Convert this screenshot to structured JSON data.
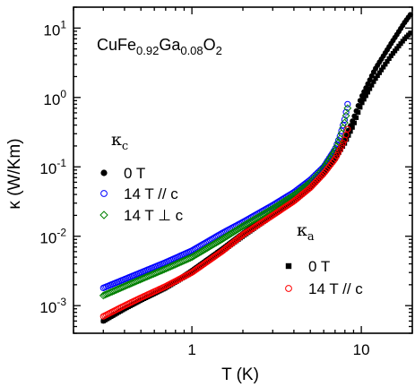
{
  "chart_data": {
    "type": "scatter",
    "title_parts": [
      "CuFe",
      "0.92",
      "Ga",
      "0.08",
      "O",
      "2"
    ],
    "xlabel": "T (K)",
    "ylabel": "κ (W/Km)",
    "xscale": "log",
    "yscale": "log",
    "xlim": [
      0.2,
      20
    ],
    "ylim": [
      0.0004,
      20
    ],
    "x_ticks": [
      {
        "value": 1,
        "label": "1"
      },
      {
        "value": 10,
        "label": "10"
      }
    ],
    "y_ticks": [
      {
        "value": 0.001,
        "base": "10",
        "exp": "-3"
      },
      {
        "value": 0.01,
        "base": "10",
        "exp": "-2"
      },
      {
        "value": 0.1,
        "base": "10",
        "exp": "-1"
      },
      {
        "value": 1,
        "base": "10",
        "exp": "0"
      },
      {
        "value": 10,
        "base": "10",
        "exp": "1"
      }
    ],
    "legend_groups": [
      {
        "symbol": "κ",
        "subscript": "c",
        "placement": "middle-left"
      },
      {
        "symbol": "κ",
        "subscript": "a",
        "placement": "bottom-right"
      }
    ],
    "series": [
      {
        "name": "0 T",
        "group": "c",
        "marker": "filled-circle",
        "color": "#000000",
        "points": [
          [
            0.3,
            0.0006
          ],
          [
            0.4,
            0.0009
          ],
          [
            0.5,
            0.0012
          ],
          [
            0.7,
            0.0018
          ],
          [
            1,
            0.0032
          ],
          [
            1.5,
            0.0065
          ],
          [
            2,
            0.011
          ],
          [
            3,
            0.022
          ],
          [
            4,
            0.035
          ],
          [
            5,
            0.055
          ],
          [
            6,
            0.09
          ],
          [
            7,
            0.15
          ],
          [
            8,
            0.25
          ],
          [
            9,
            0.5
          ],
          [
            10,
            1.0
          ],
          [
            12,
            2.5
          ],
          [
            15,
            6
          ],
          [
            18,
            12
          ],
          [
            20,
            17
          ]
        ]
      },
      {
        "name": "14 T // c",
        "group": "c",
        "marker": "open-circle",
        "color": "#0000ff",
        "points": [
          [
            0.3,
            0.0018
          ],
          [
            0.4,
            0.0024
          ],
          [
            0.5,
            0.003
          ],
          [
            0.7,
            0.0042
          ],
          [
            1,
            0.0062
          ],
          [
            1.5,
            0.011
          ],
          [
            2,
            0.016
          ],
          [
            3,
            0.028
          ],
          [
            4,
            0.043
          ],
          [
            5,
            0.065
          ],
          [
            6,
            0.1
          ],
          [
            7,
            0.18
          ],
          [
            7.5,
            0.28
          ],
          [
            8,
            0.5
          ],
          [
            8.3,
            0.8
          ]
        ]
      },
      {
        "name": "14 T ⊥ c",
        "group": "c",
        "marker": "open-diamond",
        "color": "#008000",
        "points": [
          [
            0.3,
            0.0014
          ],
          [
            0.4,
            0.0019
          ],
          [
            0.5,
            0.0024
          ],
          [
            0.7,
            0.0034
          ],
          [
            1,
            0.005
          ],
          [
            1.5,
            0.009
          ],
          [
            2,
            0.014
          ],
          [
            3,
            0.025
          ],
          [
            4,
            0.039
          ],
          [
            5,
            0.06
          ],
          [
            6,
            0.095
          ],
          [
            7,
            0.17
          ],
          [
            7.5,
            0.26
          ],
          [
            8,
            0.45
          ],
          [
            8.3,
            0.7
          ]
        ]
      },
      {
        "name": "0 T",
        "group": "a",
        "marker": "filled-square",
        "color": "#000000",
        "points": [
          [
            0.3,
            0.0006
          ],
          [
            0.4,
            0.0009
          ],
          [
            0.5,
            0.0012
          ],
          [
            0.7,
            0.0018
          ],
          [
            1,
            0.003
          ],
          [
            1.5,
            0.006
          ],
          [
            2,
            0.01
          ],
          [
            3,
            0.02
          ],
          [
            4,
            0.032
          ],
          [
            5,
            0.05
          ],
          [
            6,
            0.08
          ],
          [
            7,
            0.13
          ],
          [
            8,
            0.22
          ],
          [
            9,
            0.4
          ],
          [
            10,
            0.8
          ],
          [
            12,
            1.8
          ],
          [
            15,
            4
          ],
          [
            18,
            7
          ],
          [
            20,
            9
          ]
        ]
      },
      {
        "name": "14 T // c",
        "group": "a",
        "marker": "open-circle",
        "color": "#ff0000",
        "points": [
          [
            0.3,
            0.0007
          ],
          [
            0.4,
            0.001
          ],
          [
            0.5,
            0.0013
          ],
          [
            0.7,
            0.0019
          ],
          [
            1,
            0.003
          ],
          [
            1.5,
            0.006
          ],
          [
            2,
            0.0105
          ],
          [
            3,
            0.02
          ],
          [
            4,
            0.032
          ],
          [
            5,
            0.05
          ],
          [
            6,
            0.08
          ],
          [
            7,
            0.13
          ],
          [
            7.5,
            0.18
          ],
          [
            8,
            0.25
          ],
          [
            8.3,
            0.35
          ]
        ]
      }
    ]
  }
}
